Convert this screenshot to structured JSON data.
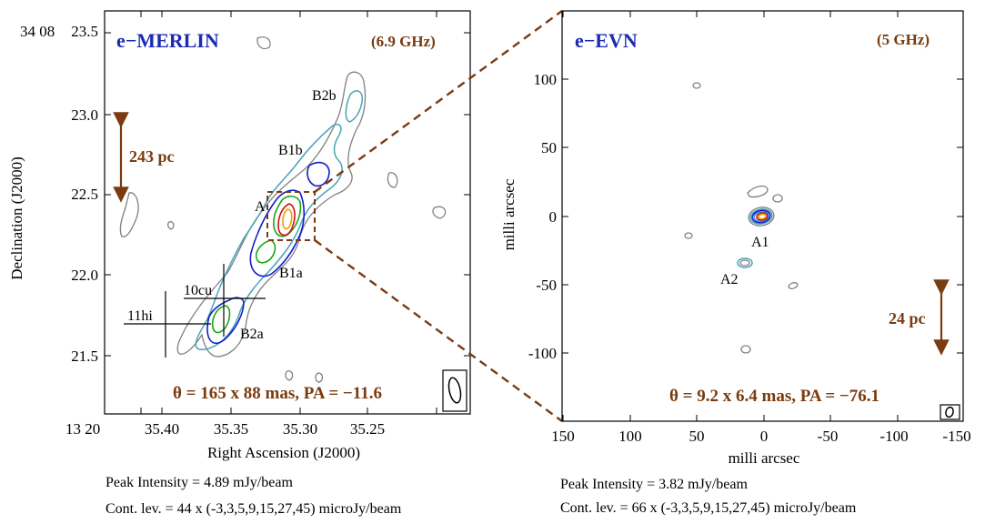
{
  "left_panel": {
    "instrument": "e−MERLIN",
    "frequency": "(6.9 GHz)",
    "beam_text": "θ = 165 x 88 mas, PA = −11.6",
    "scale_bar": "243 pc",
    "ra_origin_label": "13 20",
    "dec_origin_label": "34 08",
    "x_ticks": [
      "35.40",
      "35.35",
      "35.30",
      "35.25"
    ],
    "y_ticks": [
      "23.5",
      "23.0",
      "22.5",
      "22.0",
      "21.5"
    ],
    "xlabel": "Right Ascension (J2000)",
    "ylabel": "Declination (J2000)",
    "components": [
      "B2b",
      "B1b",
      "A",
      "B1a",
      "B2a"
    ],
    "markers": [
      "10cu",
      "11hi"
    ],
    "peak_intensity": "Peak Intensity = 4.89 mJy/beam",
    "contour_levels": "Cont. lev. = 44 x (-3,3,5,9,15,27,45) microJy/beam"
  },
  "right_panel": {
    "instrument": "e−EVN",
    "frequency": "(5 GHz)",
    "beam_text": "θ = 9.2 x 6.4 mas, PA = −76.1",
    "scale_bar": "24 pc",
    "x_ticks": [
      "150",
      "100",
      "50",
      "0",
      "-50",
      "-100",
      "-150"
    ],
    "y_ticks": [
      "100",
      "50",
      "0",
      "-50",
      "-100"
    ],
    "xlabel": "milli arcsec",
    "ylabel": "milli arcsec",
    "components": [
      "A1",
      "A2"
    ],
    "peak_intensity": "Peak Intensity = 3.82 mJy/beam",
    "contour_levels": "Cont. lev. = 66 x (-3,3,5,9,15,27,45) microJy/beam"
  },
  "colors": {
    "instrument_label": "#1c2bb5",
    "annotation_brown": "#7a3b10",
    "contour_gray": "#808080",
    "contour_cyan": "#4aa3b8",
    "contour_blue": "#1020c8",
    "contour_green": "#18a818",
    "contour_red": "#d01010",
    "contour_orange": "#f0a000"
  }
}
